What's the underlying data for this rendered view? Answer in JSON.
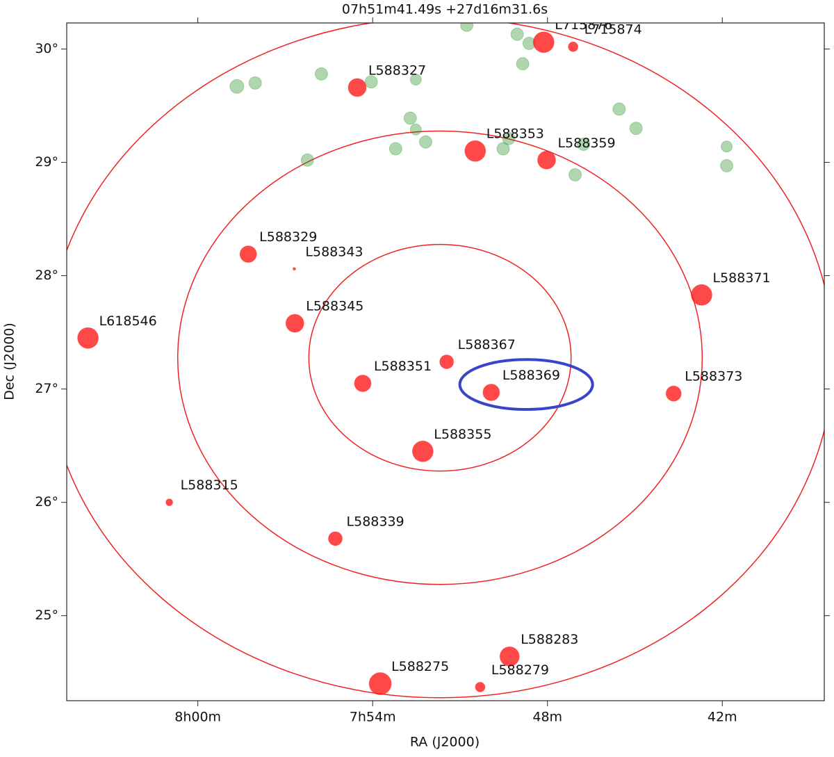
{
  "chart_data": {
    "type": "sky",
    "title": "07h51m41.49s +27d16m31.6s",
    "x_label": "RA (J2000)",
    "y_label": "Dec (J2000)",
    "xlim": [
      484.5,
      458.5
    ],
    "ylim": [
      24.25,
      30.23
    ],
    "xticks": [
      {
        "value": 480,
        "label": "8h00m"
      },
      {
        "value": 474,
        "label": "7h54m"
      },
      {
        "value": 468,
        "label": "48m"
      },
      {
        "value": 462,
        "label": "42m"
      }
    ],
    "yticks": [
      {
        "value": 25,
        "label": "25°"
      },
      {
        "value": 26,
        "label": "26°"
      },
      {
        "value": 27,
        "label": "27°"
      },
      {
        "value": 28,
        "label": "28°"
      },
      {
        "value": 29,
        "label": "29°"
      },
      {
        "value": 30,
        "label": "30°"
      }
    ],
    "center": {
      "ra": 471.69,
      "dec": 27.276
    },
    "rings_deg": [
      1,
      2,
      3
    ],
    "ring_color": "#ee2222",
    "region": {
      "ra": 468.73,
      "dec": 27.04,
      "width": 4.56,
      "height": 0.44,
      "color": "#3a44c8"
    },
    "series": [
      {
        "color": "#ff1a1a",
        "labels": [
          "L588327",
          "L715876",
          "L715874",
          "L588353",
          "L588359",
          "L588329",
          "L588343",
          "L618546",
          "L588345",
          "L588371",
          "L588367",
          "L588351",
          "L588369",
          "L588373",
          "L588355",
          "L588315",
          "L588339",
          "L588283",
          "L588275",
          "L588279"
        ],
        "x": [
          474.53,
          468.13,
          467.12,
          470.48,
          468.03,
          478.27,
          476.69,
          483.77,
          476.67,
          462.71,
          471.46,
          474.34,
          469.93,
          463.67,
          472.28,
          480.98,
          475.28,
          469.3,
          473.74,
          470.31
        ],
        "values": [
          29.66,
          30.06,
          30.02,
          29.1,
          29.02,
          28.19,
          28.06,
          27.45,
          27.58,
          27.83,
          27.24,
          27.05,
          26.97,
          26.96,
          26.45,
          26.0,
          25.68,
          24.64,
          24.4,
          24.37
        ],
        "sizes": [
          13,
          15,
          7,
          15,
          13,
          12,
          2,
          15,
          13,
          15,
          10,
          12,
          12,
          11,
          15,
          5,
          10,
          14,
          16,
          7
        ]
      },
      {
        "color": "#1a8a1a",
        "x": [
          470.77,
          469.04,
          468.63,
          468.85,
          475.76,
          478.66,
          478.03,
          474.05,
          472.52,
          472.71,
          472.52,
          472.18,
          473.21,
          476.24,
          469.52,
          469.33,
          465.54,
          464.96,
          466.76,
          467.05,
          461.85,
          461.85
        ],
        "values": [
          30.21,
          30.13,
          30.05,
          29.87,
          29.78,
          29.67,
          29.7,
          29.71,
          29.73,
          29.39,
          29.29,
          29.18,
          29.12,
          29.02,
          29.12,
          29.21,
          29.47,
          29.3,
          29.16,
          28.89,
          29.14,
          28.97
        ],
        "sizes": [
          9,
          9,
          9,
          9,
          9,
          10,
          9,
          9,
          8,
          9,
          8,
          9,
          9,
          9,
          9,
          9,
          9,
          9,
          9,
          9,
          8,
          9
        ]
      }
    ]
  }
}
